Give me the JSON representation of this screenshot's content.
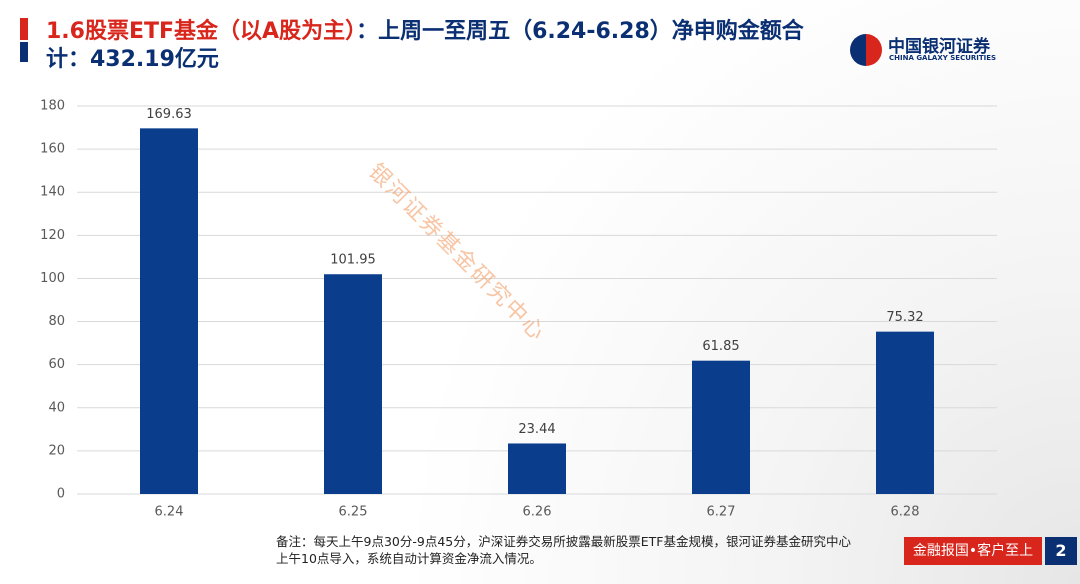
{
  "header": {
    "title_part1": "1.6股票ETF基金（以A股为主）",
    "title_part2": "：上周一至周五（6.24-6.28）净申购金额合计：432.19亿元",
    "logo_cn": "中国银河证券",
    "logo_en": "CHINA GALAXY SECURITIES"
  },
  "watermark": "银河证券基金研究中心",
  "chart_data": {
    "type": "bar",
    "categories": [
      "6.24",
      "6.25",
      "6.26",
      "6.27",
      "6.28"
    ],
    "values": [
      169.63,
      101.95,
      23.44,
      61.85,
      75.32
    ],
    "color": "#0a3d8c",
    "ylim": [
      0,
      180
    ],
    "yticks": [
      0,
      20,
      40,
      60,
      80,
      100,
      120,
      140,
      160,
      180
    ],
    "grid": true
  },
  "footnote": {
    "line1": "备注：每天上午9点30分-9点45分，沪深证券交易所披露最新股票ETF基金规模，银河证券基金研究中心",
    "line2": "上午10点导入，系统自动计算资金净流入情况。"
  },
  "footer": {
    "slogan": "金融报国•客户至上",
    "page": "2"
  }
}
